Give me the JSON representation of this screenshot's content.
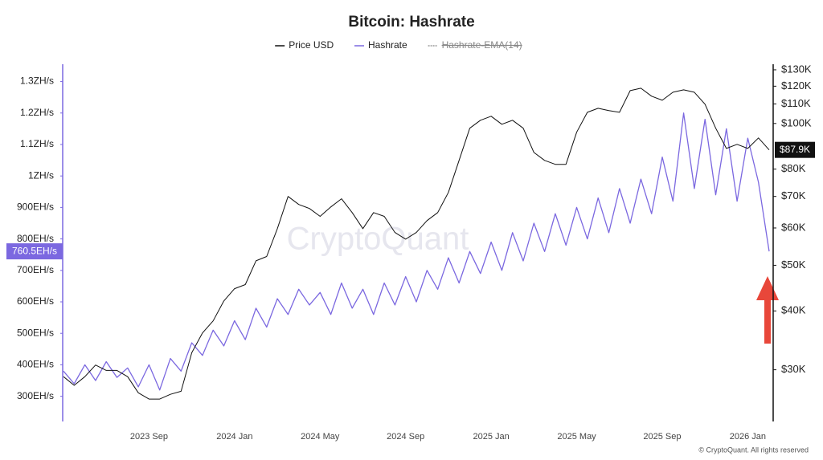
{
  "chart_data": {
    "type": "line",
    "title": "Bitcoin: Hashrate",
    "watermark": "CryptoQuant",
    "footer": "© CryptoQuant. All rights reserved",
    "categories": [
      null,
      null,
      null,
      null,
      null,
      null,
      null,
      null,
      "2023 Sep",
      null,
      null,
      null,
      null,
      null,
      null,
      null,
      "2024 Jan",
      null,
      null,
      null,
      null,
      null,
      null,
      null,
      "2024 May",
      null,
      null,
      null,
      null,
      null,
      null,
      null,
      "2024 Sep",
      null,
      null,
      null,
      null,
      null,
      null,
      null,
      "2025 Jan",
      null,
      null,
      null,
      null,
      null,
      null,
      null,
      "2025 May",
      null,
      null,
      null,
      null,
      null,
      null,
      null,
      "2025 Sep",
      null,
      null,
      null,
      null,
      null,
      null,
      null,
      "2026 Jan",
      null,
      null
    ],
    "series": [
      {
        "name": "Price USD",
        "color": "#111111",
        "axis": "y2",
        "values": [
          29000,
          27800,
          29000,
          30700,
          29900,
          29900,
          29000,
          26800,
          26000,
          26000,
          26600,
          27000,
          32600,
          35900,
          38100,
          42000,
          44600,
          45500,
          51100,
          52200,
          59800,
          70000,
          67300,
          66000,
          63500,
          66500,
          69200,
          64700,
          59800,
          64700,
          63500,
          58700,
          56800,
          58700,
          62200,
          64700,
          71400,
          83500,
          97700,
          101600,
          103600,
          99600,
          101600,
          97700,
          86800,
          83500,
          81900,
          81900,
          95800,
          105600,
          107700,
          106500,
          105600,
          117400,
          118800,
          114300,
          112000,
          116500,
          117900,
          116500,
          109900,
          97700,
          88500,
          90300,
          88500,
          93200,
          87900
        ],
        "value_labels": [
          null,
          null,
          null,
          null,
          null,
          null,
          null,
          null,
          null,
          null,
          null,
          null,
          null,
          null,
          null,
          null,
          null,
          null,
          null,
          null,
          null,
          null,
          null,
          null,
          null,
          null,
          null,
          null,
          null,
          null,
          null,
          null,
          null,
          null,
          null,
          null,
          null,
          null,
          null,
          null,
          null,
          null,
          null,
          null,
          null,
          null,
          null,
          null,
          null,
          null,
          null,
          null,
          null,
          null,
          null,
          null,
          null,
          null,
          null,
          null,
          null,
          null,
          null,
          null,
          null,
          null,
          "$87.9K"
        ]
      },
      {
        "name": "Hashrate",
        "color": "#7b68e0",
        "axis": "y",
        "values": [
          380,
          340,
          400,
          350,
          410,
          360,
          390,
          330,
          400,
          320,
          420,
          380,
          470,
          430,
          510,
          460,
          540,
          480,
          580,
          520,
          610,
          560,
          640,
          590,
          630,
          560,
          660,
          580,
          640,
          560,
          660,
          590,
          680,
          600,
          700,
          640,
          740,
          660,
          760,
          690,
          790,
          700,
          820,
          730,
          850,
          760,
          880,
          780,
          900,
          800,
          930,
          820,
          960,
          850,
          990,
          880,
          1060,
          920,
          1200,
          960,
          1180,
          940,
          1150,
          920,
          1120,
          980,
          760.5
        ],
        "value_labels": [
          null,
          null,
          null,
          null,
          null,
          null,
          null,
          null,
          null,
          null,
          null,
          null,
          null,
          null,
          null,
          null,
          null,
          null,
          null,
          null,
          null,
          null,
          null,
          null,
          null,
          null,
          null,
          null,
          null,
          null,
          null,
          null,
          null,
          null,
          null,
          null,
          null,
          null,
          null,
          null,
          null,
          null,
          null,
          null,
          null,
          null,
          null,
          null,
          null,
          null,
          null,
          null,
          null,
          null,
          null,
          null,
          null,
          null,
          null,
          null,
          null,
          null,
          null,
          null,
          null,
          null,
          "760.5EH/s"
        ]
      }
    ],
    "hidden_series": [
      {
        "name": "Hashrate-EMA(14)",
        "color": "#9a9a9a"
      }
    ],
    "ylim": [
      220,
      1355
    ],
    "yticks": [
      {
        "value": 300,
        "label": "300EH/s"
      },
      {
        "value": 400,
        "label": "400EH/s"
      },
      {
        "value": 500,
        "label": "500EH/s"
      },
      {
        "value": 600,
        "label": "600EH/s"
      },
      {
        "value": 700,
        "label": "700EH/s"
      },
      {
        "value": 800,
        "label": "800EH/s"
      },
      {
        "value": 900,
        "label": "900EH/s"
      },
      {
        "value": 1000,
        "label": "1ZH/s"
      },
      {
        "value": 1100,
        "label": "1.1ZH/s"
      },
      {
        "value": 1200,
        "label": "1.2ZH/s"
      },
      {
        "value": 1300,
        "label": "1.3ZH/s"
      }
    ],
    "y2lim": [
      23300,
      133600
    ],
    "y2log": true,
    "y2ticks": [
      {
        "value": 30000,
        "label": "$30K"
      },
      {
        "value": 40000,
        "label": "$40K"
      },
      {
        "value": 50000,
        "label": "$50K"
      },
      {
        "value": 60000,
        "label": "$60K"
      },
      {
        "value": 70000,
        "label": "$70K"
      },
      {
        "value": 80000,
        "label": "$80K"
      },
      {
        "value": 100000,
        "label": "$100K"
      },
      {
        "value": 110000,
        "label": "$110K"
      },
      {
        "value": 120000,
        "label": "$120K"
      },
      {
        "value": 130000,
        "label": "$130K"
      }
    ],
    "grid": false,
    "legend": "top"
  }
}
